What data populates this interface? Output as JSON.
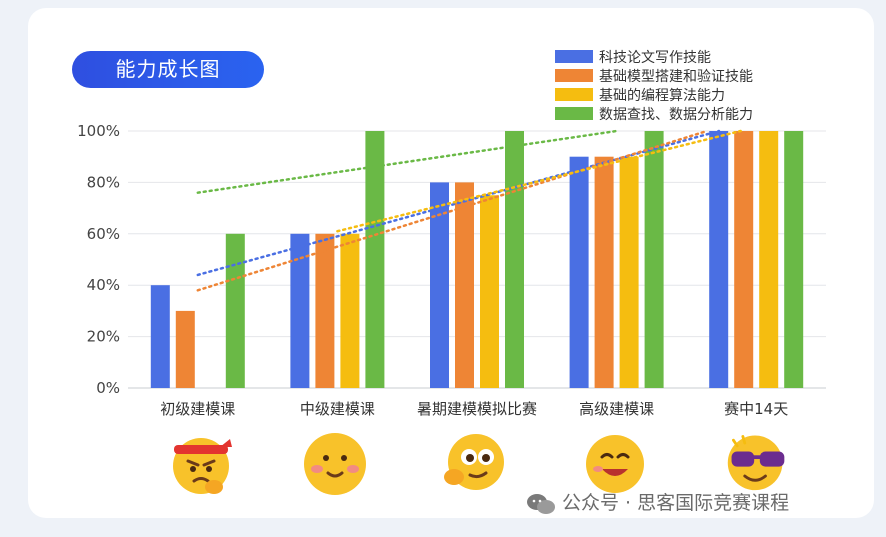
{
  "title": "能力成长图",
  "watermark": "公众号 · 思客国际竞赛课程",
  "chart_data": {
    "type": "bar",
    "categories": [
      "初级建模课",
      "中级建模课",
      "暑期建模模拟比赛",
      "高级建模课",
      "赛中14天"
    ],
    "series": [
      {
        "name": "科技论文写作技能",
        "color": "#4a6fe3",
        "values": [
          40,
          60,
          80,
          90,
          100
        ]
      },
      {
        "name": "基础模型搭建和验证技能",
        "color": "#ee8535",
        "values": [
          30,
          60,
          80,
          90,
          100
        ]
      },
      {
        "name": "基础的编程算法能力",
        "color": "#f5bd10",
        "values": [
          0,
          60,
          75,
          90,
          100
        ]
      },
      {
        "name": "数据查找、数据分析能力",
        "color": "#6ab946",
        "values": [
          60,
          100,
          100,
          100,
          100
        ]
      }
    ],
    "ylim": [
      0,
      100
    ],
    "yticks": [
      "0%",
      "20%",
      "40%",
      "60%",
      "80%",
      "100%"
    ],
    "trendlines": "dotted linear trendline per series",
    "grid": true,
    "legend": "top-right"
  },
  "emojis": [
    {
      "icon": "angry-headband-emoji-icon"
    },
    {
      "icon": "blushing-smile-emoji-icon"
    },
    {
      "icon": "thinking-emoji-icon"
    },
    {
      "icon": "grinning-emoji-icon"
    },
    {
      "icon": "sunglasses-emoji-icon"
    }
  ]
}
